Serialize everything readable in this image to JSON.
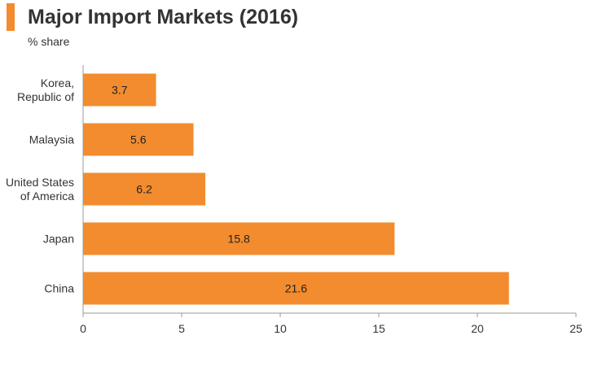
{
  "header": {
    "title": "Major Import Markets (2016)",
    "subtitle": "% share"
  },
  "colors": {
    "accent": "#f28c2e",
    "bar": "#f28c2e",
    "axis": "#999999",
    "text": "#333333"
  },
  "chart_data": {
    "type": "bar",
    "orientation": "horizontal",
    "title": "Major Import Markets (2016)",
    "subtitle": "% share",
    "categories": [
      [
        "Korea,",
        "Republic of"
      ],
      [
        "Malaysia"
      ],
      [
        "United States",
        "of America"
      ],
      [
        "Japan"
      ],
      [
        "China"
      ]
    ],
    "values": [
      3.7,
      5.6,
      6.2,
      15.8,
      21.6
    ],
    "value_labels": [
      "3.7",
      "5.6",
      "6.2",
      "15.8",
      "21.6"
    ],
    "xlim": [
      0,
      25
    ],
    "xticks": [
      0,
      5,
      10,
      15,
      20,
      25
    ],
    "xlabel": "",
    "ylabel": "",
    "grid": false,
    "legend": "none"
  }
}
